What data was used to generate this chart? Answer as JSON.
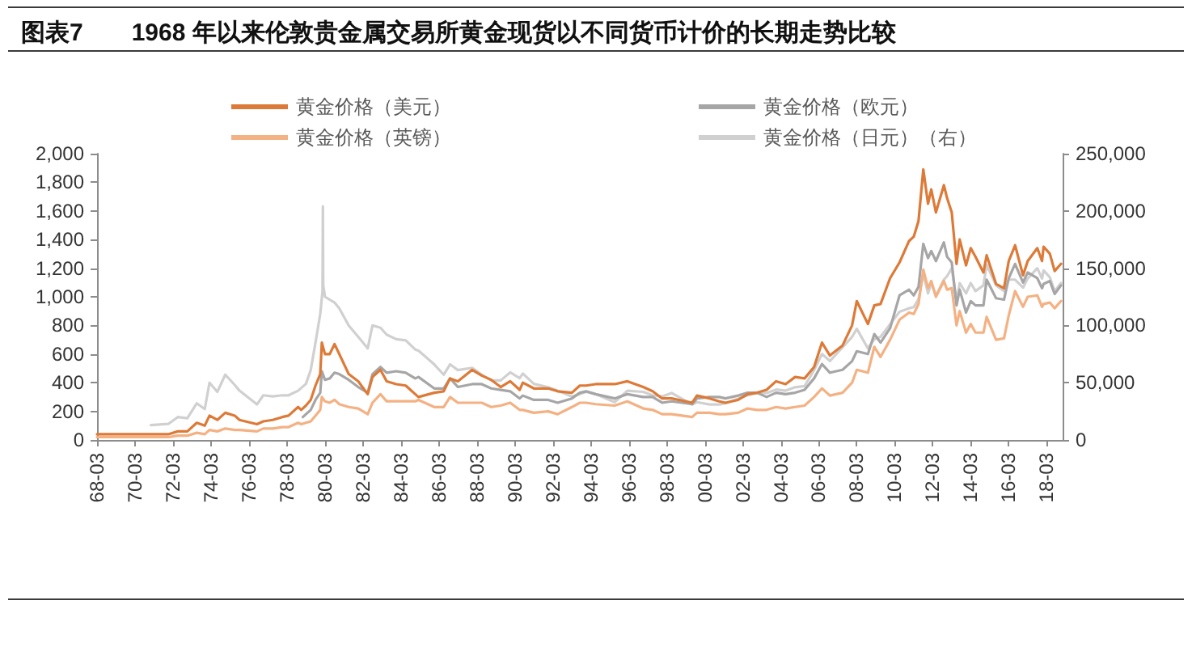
{
  "chart_data": {
    "type": "line",
    "title": "图表7　　1968 年以来伦敦贵金属交易所黄金现货以不同货币计价的长期走势比较",
    "legend": "top",
    "marker": "none",
    "xlim": [
      "1968-03",
      "2019-01"
    ],
    "xticks": [
      {
        "value": "1968-03",
        "label": "68-03"
      },
      {
        "value": "1970-03",
        "label": "70-03"
      },
      {
        "value": "1972-03",
        "label": "72-03"
      },
      {
        "value": "1974-03",
        "label": "74-03"
      },
      {
        "value": "1976-03",
        "label": "76-03"
      },
      {
        "value": "1978-03",
        "label": "78-03"
      },
      {
        "value": "1980-03",
        "label": "80-03"
      },
      {
        "value": "1982-03",
        "label": "82-03"
      },
      {
        "value": "1984-03",
        "label": "84-03"
      },
      {
        "value": "1986-03",
        "label": "86-03"
      },
      {
        "value": "1988-03",
        "label": "88-03"
      },
      {
        "value": "1990-03",
        "label": "90-03"
      },
      {
        "value": "1992-03",
        "label": "92-03"
      },
      {
        "value": "1994-03",
        "label": "94-03"
      },
      {
        "value": "1996-03",
        "label": "96-03"
      },
      {
        "value": "1998-03",
        "label": "98-03"
      },
      {
        "value": "2000-03",
        "label": "00-03"
      },
      {
        "value": "2002-03",
        "label": "02-03"
      },
      {
        "value": "2004-03",
        "label": "04-03"
      },
      {
        "value": "2006-03",
        "label": "06-03"
      },
      {
        "value": "2008-03",
        "label": "08-03"
      },
      {
        "value": "2010-03",
        "label": "10-03"
      },
      {
        "value": "2012-03",
        "label": "12-03"
      },
      {
        "value": "2014-03",
        "label": "14-03"
      },
      {
        "value": "2016-03",
        "label": "16-03"
      },
      {
        "value": "2018-03",
        "label": "18-03"
      }
    ],
    "ylim": [
      0,
      2000
    ],
    "yticks": [
      0,
      200,
      400,
      600,
      800,
      {
        "value": 1000,
        "label": "1,000"
      },
      {
        "value": 1200,
        "label": "1,200"
      },
      {
        "value": 1400,
        "label": "1,400"
      },
      {
        "value": 1600,
        "label": "1,600"
      },
      {
        "value": 1800,
        "label": "1,800"
      },
      {
        "value": 2000,
        "label": "2,000"
      }
    ],
    "y2lim": [
      0,
      250000
    ],
    "y2ticks": [
      0,
      {
        "value": 50000,
        "label": "50,000"
      },
      {
        "value": 100000,
        "label": "100,000"
      },
      {
        "value": 150000,
        "label": "150,000"
      },
      {
        "value": 200000,
        "label": "200,000"
      },
      {
        "value": 250000,
        "label": "250,000"
      }
    ],
    "series": [
      {
        "name": "黄金价格（美元）",
        "color": "#dd7a38",
        "x": [
          "1968-03",
          "1968-12",
          "1969-03",
          "1969-12",
          "1970-06",
          "1970-12",
          "1971-06",
          "1971-12",
          "1972-06",
          "1972-12",
          "1973-06",
          "1973-11",
          "1974-02",
          "1974-07",
          "1974-12",
          "1975-06",
          "1975-09",
          "1976-08",
          "1976-12",
          "1977-06",
          "1977-12",
          "1978-04",
          "1978-10",
          "1978-12",
          "1979-03",
          "1979-06",
          "1979-09",
          "1979-12",
          "1980-01",
          "1980-03",
          "1980-06",
          "1980-09",
          "1980-12",
          "1981-06",
          "1981-12",
          "1982-06",
          "1982-09",
          "1983-02",
          "1983-06",
          "1983-12",
          "1984-06",
          "1984-12",
          "1985-02",
          "1985-12",
          "1986-06",
          "1986-10",
          "1987-03",
          "1987-12",
          "1988-06",
          "1988-12",
          "1989-06",
          "1989-12",
          "1990-06",
          "1990-08",
          "1991-03",
          "1991-12",
          "1992-06",
          "1993-03",
          "1993-08",
          "1993-12",
          "1994-06",
          "1995-06",
          "1996-02",
          "1996-12",
          "1997-06",
          "1997-12",
          "1998-06",
          "1999-07",
          "1999-10",
          "2000-06",
          "2000-12",
          "2001-04",
          "2001-12",
          "2002-06",
          "2002-12",
          "2003-06",
          "2003-12",
          "2004-06",
          "2004-12",
          "2005-06",
          "2005-12",
          "2006-05",
          "2006-10",
          "2007-06",
          "2007-12",
          "2008-03",
          "2008-10",
          "2009-02",
          "2009-06",
          "2009-12",
          "2010-06",
          "2010-12",
          "2011-03",
          "2011-06",
          "2011-09",
          "2011-12",
          "2012-02",
          "2012-05",
          "2012-10",
          "2012-12",
          "2013-03",
          "2013-06",
          "2013-08",
          "2013-12",
          "2014-03",
          "2014-06",
          "2014-11",
          "2015-01",
          "2015-07",
          "2015-12",
          "2016-03",
          "2016-07",
          "2016-12",
          "2017-03",
          "2017-09",
          "2017-12",
          "2018-01",
          "2018-05",
          "2018-08",
          "2018-12"
        ],
        "values": [
          40,
          40,
          40,
          40,
          40,
          40,
          40,
          40,
          60,
          60,
          120,
          100,
          170,
          140,
          190,
          170,
          140,
          110,
          130,
          140,
          160,
          170,
          230,
          210,
          240,
          280,
          380,
          460,
          680,
          600,
          600,
          670,
          600,
          460,
          410,
          320,
          440,
          490,
          410,
          390,
          380,
          320,
          300,
          330,
          340,
          430,
          410,
          490,
          450,
          420,
          370,
          410,
          350,
          400,
          360,
          360,
          340,
          330,
          380,
          380,
          390,
          390,
          410,
          370,
          340,
          290,
          290,
          260,
          310,
          290,
          270,
          260,
          280,
          320,
          330,
          350,
          410,
          390,
          440,
          430,
          510,
          680,
          590,
          660,
          800,
          970,
          810,
          940,
          950,
          1130,
          1240,
          1390,
          1420,
          1530,
          1890,
          1650,
          1750,
          1590,
          1780,
          1690,
          1590,
          1230,
          1400,
          1220,
          1340,
          1280,
          1170,
          1290,
          1090,
          1060,
          1250,
          1360,
          1150,
          1250,
          1340,
          1250,
          1350,
          1300,
          1180,
          1230
        ]
      },
      {
        "name": "黄金价格（欧元）",
        "color": "#a6a6a6",
        "x": [
          "1979-01",
          "1979-06",
          "1979-09",
          "1979-12",
          "1980-01",
          "1980-03",
          "1980-06",
          "1980-09",
          "1980-12",
          "1981-06",
          "1981-12",
          "1982-06",
          "1982-09",
          "1983-02",
          "1983-06",
          "1983-12",
          "1984-06",
          "1984-12",
          "1985-02",
          "1985-12",
          "1986-06",
          "1986-10",
          "1987-03",
          "1987-12",
          "1988-06",
          "1988-12",
          "1989-06",
          "1989-12",
          "1990-06",
          "1990-08",
          "1991-03",
          "1991-12",
          "1992-06",
          "1993-03",
          "1993-08",
          "1993-12",
          "1994-06",
          "1995-06",
          "1996-02",
          "1996-12",
          "1997-06",
          "1997-12",
          "1998-06",
          "1999-07",
          "1999-10",
          "2000-06",
          "2000-12",
          "2001-04",
          "2001-12",
          "2002-06",
          "2002-12",
          "2003-06",
          "2003-12",
          "2004-06",
          "2004-12",
          "2005-06",
          "2005-12",
          "2006-05",
          "2006-10",
          "2007-06",
          "2007-12",
          "2008-03",
          "2008-10",
          "2009-02",
          "2009-06",
          "2009-12",
          "2010-06",
          "2010-12",
          "2011-03",
          "2011-06",
          "2011-09",
          "2011-12",
          "2012-02",
          "2012-05",
          "2012-10",
          "2012-12",
          "2013-03",
          "2013-06",
          "2013-08",
          "2013-12",
          "2014-03",
          "2014-06",
          "2014-11",
          "2015-01",
          "2015-07",
          "2015-12",
          "2016-03",
          "2016-07",
          "2016-12",
          "2017-03",
          "2017-09",
          "2017-12",
          "2018-01",
          "2018-05",
          "2018-08",
          "2018-12"
        ],
        "values": [
          160,
          210,
          280,
          330,
          480,
          420,
          430,
          470,
          460,
          420,
          370,
          330,
          460,
          510,
          470,
          480,
          470,
          430,
          440,
          360,
          360,
          430,
          370,
          390,
          390,
          360,
          350,
          340,
          290,
          310,
          280,
          280,
          260,
          290,
          330,
          340,
          320,
          290,
          320,
          300,
          300,
          260,
          270,
          250,
          290,
          300,
          300,
          290,
          310,
          330,
          330,
          300,
          330,
          320,
          330,
          350,
          430,
          530,
          470,
          490,
          550,
          620,
          600,
          740,
          680,
          780,
          1010,
          1050,
          1010,
          1070,
          1370,
          1270,
          1320,
          1250,
          1380,
          1280,
          1240,
          940,
          1050,
          890,
          970,
          940,
          940,
          1120,
          990,
          980,
          1130,
          1230,
          1100,
          1170,
          1130,
          1060,
          1090,
          1110,
          1020,
          1080
        ]
      },
      {
        "name": "黄金价格（英镑）",
        "color": "#f4b183",
        "x": [
          "1968-03",
          "1968-12",
          "1969-03",
          "1969-12",
          "1970-06",
          "1970-12",
          "1971-06",
          "1971-12",
          "1972-06",
          "1972-12",
          "1973-06",
          "1973-11",
          "1974-02",
          "1974-07",
          "1974-12",
          "1975-06",
          "1975-09",
          "1976-08",
          "1976-12",
          "1977-06",
          "1977-12",
          "1978-04",
          "1978-10",
          "1978-12",
          "1979-03",
          "1979-06",
          "1979-09",
          "1979-12",
          "1980-01",
          "1980-03",
          "1980-06",
          "1980-09",
          "1980-12",
          "1981-06",
          "1981-12",
          "1982-06",
          "1982-09",
          "1983-02",
          "1983-06",
          "1983-12",
          "1984-06",
          "1984-12",
          "1985-02",
          "1985-12",
          "1986-06",
          "1986-10",
          "1987-03",
          "1987-12",
          "1988-06",
          "1988-12",
          "1989-06",
          "1989-12",
          "1990-06",
          "1990-08",
          "1991-03",
          "1991-12",
          "1992-06",
          "1993-03",
          "1993-08",
          "1993-12",
          "1994-06",
          "1995-06",
          "1996-02",
          "1996-12",
          "1997-06",
          "1997-12",
          "1998-06",
          "1999-07",
          "1999-10",
          "2000-06",
          "2000-12",
          "2001-04",
          "2001-12",
          "2002-06",
          "2002-12",
          "2003-06",
          "2003-12",
          "2004-06",
          "2004-12",
          "2005-06",
          "2005-12",
          "2006-05",
          "2006-10",
          "2007-06",
          "2007-12",
          "2008-03",
          "2008-10",
          "2009-02",
          "2009-06",
          "2009-12",
          "2010-06",
          "2010-12",
          "2011-03",
          "2011-06",
          "2011-09",
          "2011-12",
          "2012-02",
          "2012-05",
          "2012-10",
          "2012-12",
          "2013-03",
          "2013-06",
          "2013-08",
          "2013-12",
          "2014-03",
          "2014-06",
          "2014-11",
          "2015-01",
          "2015-07",
          "2015-12",
          "2016-03",
          "2016-07",
          "2016-12",
          "2017-03",
          "2017-09",
          "2017-12",
          "2018-01",
          "2018-05",
          "2018-08",
          "2018-12"
        ],
        "values": [
          20,
          20,
          20,
          20,
          20,
          20,
          20,
          20,
          30,
          30,
          50,
          40,
          70,
          60,
          80,
          70,
          70,
          60,
          80,
          80,
          90,
          90,
          120,
          110,
          120,
          130,
          170,
          210,
          300,
          270,
          260,
          280,
          250,
          230,
          220,
          180,
          260,
          320,
          270,
          270,
          270,
          270,
          280,
          230,
          230,
          300,
          260,
          260,
          260,
          230,
          240,
          260,
          210,
          210,
          190,
          200,
          180,
          230,
          260,
          260,
          250,
          240,
          270,
          220,
          210,
          180,
          180,
          160,
          190,
          190,
          180,
          180,
          190,
          220,
          210,
          210,
          230,
          220,
          230,
          240,
          300,
          360,
          310,
          330,
          400,
          490,
          470,
          650,
          580,
          700,
          840,
          890,
          880,
          950,
          1190,
          1060,
          1110,
          1000,
          1110,
          1050,
          1060,
          800,
          900,
          750,
          810,
          750,
          750,
          860,
          700,
          710,
          870,
          1040,
          930,
          1000,
          1010,
          930,
          950,
          960,
          920,
          970
        ]
      },
      {
        "name": "黄金价格（日元）（右）",
        "color": "#d0d0d0",
        "axis": "y2",
        "x": [
          "1971-01",
          "1971-12",
          "1972-06",
          "1972-12",
          "1973-06",
          "1973-11",
          "1974-02",
          "1974-07",
          "1974-12",
          "1975-06",
          "1975-09",
          "1976-08",
          "1976-12",
          "1977-06",
          "1977-12",
          "1978-04",
          "1978-10",
          "1979-03",
          "1979-06",
          "1979-09",
          "1979-12",
          "1980-01-14",
          "1980-01-21",
          "1980-01-28",
          "1980-03",
          "1980-09",
          "1980-12",
          "1981-06",
          "1981-12",
          "1982-06",
          "1982-09",
          "1983-02",
          "1983-06",
          "1983-12",
          "1984-06",
          "1984-12",
          "1985-02",
          "1985-12",
          "1986-06",
          "1986-10",
          "1987-03",
          "1987-12",
          "1988-06",
          "1988-12",
          "1989-06",
          "1989-12",
          "1990-06",
          "1990-08",
          "1991-03",
          "1991-12",
          "1992-06",
          "1993-03",
          "1993-08",
          "1993-12",
          "1994-06",
          "1995-06",
          "1996-02",
          "1996-12",
          "1997-06",
          "1997-12",
          "1998-06",
          "1999-07",
          "1999-10",
          "2000-06",
          "2000-12",
          "2001-04",
          "2001-12",
          "2002-06",
          "2002-12",
          "2003-06",
          "2003-12",
          "2004-06",
          "2004-12",
          "2005-06",
          "2005-12",
          "2006-05",
          "2006-10",
          "2007-06",
          "2007-12",
          "2008-03",
          "2008-10",
          "2009-02",
          "2009-06",
          "2009-12",
          "2010-06",
          "2010-12",
          "2011-03",
          "2011-06",
          "2011-09",
          "2011-12",
          "2012-02",
          "2012-05",
          "2012-10",
          "2012-12",
          "2013-03",
          "2013-06",
          "2013-08",
          "2013-12",
          "2014-03",
          "2014-06",
          "2014-11",
          "2015-01",
          "2015-07",
          "2015-12",
          "2016-03",
          "2016-07",
          "2016-12",
          "2017-03",
          "2017-09",
          "2017-12",
          "2018-01",
          "2018-05",
          "2018-08",
          "2018-12"
        ],
        "values": [
          13000,
          14000,
          20000,
          19000,
          32000,
          27000,
          50000,
          42000,
          57000,
          48000,
          43000,
          31000,
          39000,
          38000,
          39000,
          39000,
          43000,
          49000,
          61000,
          85000,
          110000,
          130000,
          204000,
          135000,
          125000,
          120000,
          115000,
          100000,
          90000,
          80000,
          100000,
          98000,
          92000,
          88000,
          87000,
          79000,
          78000,
          66000,
          57000,
          66000,
          61000,
          63000,
          57000,
          52000,
          52000,
          59000,
          54000,
          58000,
          49000,
          46000,
          43000,
          38000,
          40000,
          42000,
          40000,
          33000,
          43000,
          42000,
          39000,
          38000,
          41000,
          31000,
          33000,
          31000,
          31000,
          32000,
          36000,
          39000,
          41000,
          41000,
          44000,
          43000,
          46000,
          47000,
          61000,
          75000,
          69000,
          81000,
          90000,
          97000,
          80000,
          88000,
          90000,
          101000,
          112000,
          115000,
          116000,
          123000,
          145000,
          128000,
          137000,
          126000,
          140000,
          143000,
          150000,
          121000,
          137000,
          128000,
          137000,
          130000,
          135000,
          153000,
          135000,
          130000,
          140000,
          140000,
          133000,
          141000,
          150000,
          141000,
          148000,
          142000,
          130000,
          137000
        ]
      }
    ]
  }
}
